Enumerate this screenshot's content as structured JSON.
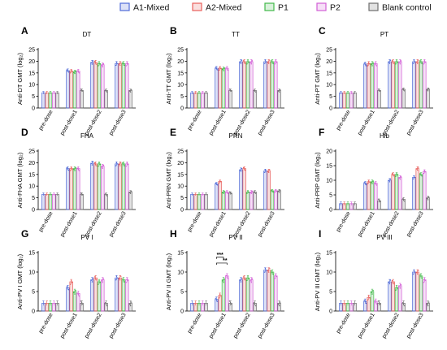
{
  "legend": {
    "placement": "top-center",
    "items": [
      {
        "label": "A1-Mixed",
        "color": "#4f6bd8"
      },
      {
        "label": "A2-Mixed",
        "color": "#e8605c"
      },
      {
        "label": "P1",
        "color": "#42b94a"
      },
      {
        "label": "P2",
        "color": "#d35fd6"
      },
      {
        "label": "Blank control",
        "color": "#6f6f6f"
      }
    ]
  },
  "chart_data": [
    {
      "letter": "A",
      "type": "bar",
      "title": "DT",
      "ylabel": "Anti-DT GMT (log₂)",
      "ylim": [
        0,
        25
      ],
      "yticks": [
        0,
        5,
        10,
        15,
        20,
        25
      ],
      "categories": [
        "pre-dose",
        "post-dose1",
        "post-dose2",
        "post-dose3"
      ],
      "series": [
        {
          "name": "A1-Mixed",
          "values": [
            6.5,
            16,
            19.5,
            19
          ]
        },
        {
          "name": "A2-Mixed",
          "values": [
            6.5,
            15.8,
            19.5,
            19
          ]
        },
        {
          "name": "P1",
          "values": [
            6.5,
            15.5,
            19,
            19
          ]
        },
        {
          "name": "P2",
          "values": [
            6.5,
            15.8,
            18.5,
            19
          ]
        },
        {
          "name": "Blank control",
          "values": [
            6.5,
            7.5,
            7.5,
            7.5
          ]
        }
      ]
    },
    {
      "letter": "B",
      "type": "bar",
      "title": "TT",
      "ylabel": "Anti-TT GMT (log₂)",
      "ylim": [
        0,
        25
      ],
      "yticks": [
        0,
        5,
        10,
        15,
        20,
        25
      ],
      "categories": [
        "pre-dose",
        "post-dose1",
        "post-dose2",
        "post-dose3"
      ],
      "series": [
        {
          "name": "A1-Mixed",
          "values": [
            6.5,
            17,
            19.8,
            19.8
          ]
        },
        {
          "name": "A2-Mixed",
          "values": [
            6.5,
            17,
            19.8,
            19.8
          ]
        },
        {
          "name": "P1",
          "values": [
            6.5,
            16.8,
            19.8,
            19.8
          ]
        },
        {
          "name": "P2",
          "values": [
            6.5,
            17,
            19.8,
            19.8
          ]
        },
        {
          "name": "Blank control",
          "values": [
            6.5,
            7.5,
            7.5,
            7.5
          ]
        }
      ]
    },
    {
      "letter": "C",
      "type": "bar",
      "title": "PT",
      "ylabel": "Anti-PT GMT (log₂)",
      "ylim": [
        0,
        25
      ],
      "yticks": [
        0,
        5,
        10,
        15,
        20,
        25
      ],
      "categories": [
        "pre-dose",
        "post-dose1",
        "post-dose2",
        "post-dose3"
      ],
      "series": [
        {
          "name": "A1-Mixed",
          "values": [
            6.5,
            18.8,
            19.8,
            19.8
          ]
        },
        {
          "name": "A2-Mixed",
          "values": [
            6.5,
            19,
            19.8,
            19.8
          ]
        },
        {
          "name": "P1",
          "values": [
            6.5,
            19,
            19.8,
            19.8
          ]
        },
        {
          "name": "P2",
          "values": [
            6.5,
            19,
            19.8,
            19.8
          ]
        },
        {
          "name": "Blank control",
          "values": [
            6.5,
            7.5,
            8,
            8
          ]
        }
      ]
    },
    {
      "letter": "D",
      "type": "bar",
      "title": "FHA",
      "ylabel": "Anti-FHA GMT (log₂)",
      "ylim": [
        0,
        25
      ],
      "yticks": [
        0,
        5,
        10,
        15,
        20,
        25
      ],
      "categories": [
        "pre-dose",
        "post-dose1",
        "post-dose2",
        "post-dose3"
      ],
      "series": [
        {
          "name": "A1-Mixed",
          "values": [
            6.5,
            17.5,
            19.8,
            19.5
          ]
        },
        {
          "name": "A2-Mixed",
          "values": [
            6.5,
            17.5,
            19.5,
            19.5
          ]
        },
        {
          "name": "P1",
          "values": [
            6.5,
            17.5,
            19.5,
            19.5
          ]
        },
        {
          "name": "P2",
          "values": [
            6.5,
            17.5,
            18.5,
            19.5
          ]
        },
        {
          "name": "Blank control",
          "values": [
            6.5,
            6.5,
            6.5,
            7.5
          ]
        }
      ]
    },
    {
      "letter": "E",
      "type": "bar",
      "title": "PRN",
      "ylabel": "Anti-PRN GMT (log₂)",
      "ylim": [
        0,
        25
      ],
      "yticks": [
        0,
        5,
        10,
        15,
        20,
        25
      ],
      "categories": [
        "pre-dose",
        "post-dose1",
        "post-dose2",
        "post-dose3"
      ],
      "series": [
        {
          "name": "A1-Mixed",
          "values": [
            6.5,
            11,
            17,
            16.5
          ]
        },
        {
          "name": "A2-Mixed",
          "values": [
            6.5,
            12,
            17.5,
            16.5
          ]
        },
        {
          "name": "P1",
          "values": [
            6.5,
            7.5,
            7.5,
            8
          ]
        },
        {
          "name": "P2",
          "values": [
            6.5,
            7.5,
            7.5,
            8
          ]
        },
        {
          "name": "Blank control",
          "values": [
            6.5,
            7,
            7.5,
            8
          ]
        }
      ]
    },
    {
      "letter": "F",
      "type": "bar",
      "title": "Hib",
      "ylabel": "Anti-PRP GMT (log₂)",
      "ylim": [
        0,
        20
      ],
      "yticks": [
        0,
        5,
        10,
        15,
        20
      ],
      "categories": [
        "pre-dose",
        "post-dose1",
        "post-dose2",
        "post-dose3"
      ],
      "series": [
        {
          "name": "A1-Mixed",
          "values": [
            2,
            9,
            10,
            11
          ]
        },
        {
          "name": "A2-Mixed",
          "values": [
            2,
            9.5,
            12,
            14
          ]
        },
        {
          "name": "P1",
          "values": [
            2,
            9.5,
            12,
            12
          ]
        },
        {
          "name": "P2",
          "values": [
            2,
            9,
            11,
            13
          ]
        },
        {
          "name": "Blank control",
          "values": [
            2,
            3,
            3.5,
            4
          ]
        }
      ]
    },
    {
      "letter": "G",
      "type": "bar",
      "title": "PV I",
      "ylabel": "Anti-PV I GMT (log₂)",
      "ylim": [
        0,
        15
      ],
      "yticks": [
        0,
        5,
        10,
        15
      ],
      "categories": [
        "pre-dose",
        "post-dose1",
        "post-dose2",
        "post-dose3"
      ],
      "series": [
        {
          "name": "A1-Mixed",
          "values": [
            2,
            6,
            8,
            8.5
          ]
        },
        {
          "name": "A2-Mixed",
          "values": [
            2,
            7.5,
            8.5,
            8.5
          ]
        },
        {
          "name": "P1",
          "values": [
            2,
            5,
            7.5,
            8
          ]
        },
        {
          "name": "P2",
          "values": [
            2,
            4.5,
            8,
            8
          ]
        },
        {
          "name": "Blank control",
          "values": [
            2,
            2,
            2,
            2
          ]
        }
      ]
    },
    {
      "letter": "H",
      "type": "bar",
      "title": "PV II",
      "ylabel": "Anti-PV II GMT (log₂)",
      "ylim": [
        0,
        15
      ],
      "yticks": [
        0,
        5,
        10,
        15
      ],
      "categories": [
        "pre-dose",
        "post-dose1",
        "post-dose2",
        "post-dose3"
      ],
      "series": [
        {
          "name": "A1-Mixed",
          "values": [
            2,
            3,
            8,
            10.5
          ]
        },
        {
          "name": "A2-Mixed",
          "values": [
            2,
            4,
            8.5,
            10.5
          ]
        },
        {
          "name": "P1",
          "values": [
            2,
            8,
            8.5,
            10
          ]
        },
        {
          "name": "P2",
          "values": [
            2,
            9,
            8,
            9
          ]
        },
        {
          "name": "Blank control",
          "values": [
            2,
            2,
            2,
            2
          ]
        }
      ],
      "annotations": [
        "***",
        "**"
      ]
    },
    {
      "letter": "I",
      "type": "bar",
      "title": "PV III",
      "ylabel": "Anti-PV III GMT (log₂)",
      "ylim": [
        0,
        15
      ],
      "yticks": [
        0,
        5,
        10,
        15
      ],
      "categories": [
        "pre-dose",
        "post-dose1",
        "post-dose2",
        "post-dose3"
      ],
      "series": [
        {
          "name": "A1-Mixed",
          "values": [
            2,
            2.5,
            7.5,
            10
          ]
        },
        {
          "name": "A2-Mixed",
          "values": [
            2,
            3.5,
            7.5,
            10
          ]
        },
        {
          "name": "P1",
          "values": [
            2,
            5,
            6,
            9
          ]
        },
        {
          "name": "P2",
          "values": [
            2,
            2.5,
            6.5,
            8
          ]
        },
        {
          "name": "Blank control",
          "values": [
            2,
            2,
            2,
            2
          ]
        }
      ]
    }
  ]
}
